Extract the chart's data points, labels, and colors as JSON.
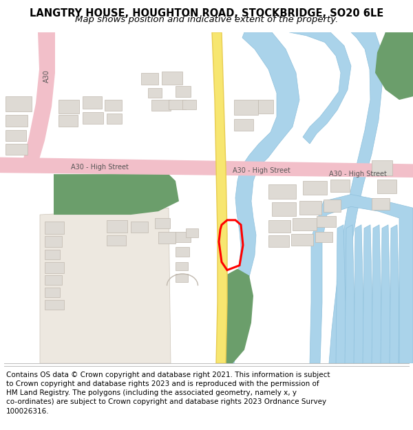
{
  "title_line1": "LANGTRY HOUSE, HOUGHTON ROAD, STOCKBRIDGE, SO20 6LE",
  "title_line2": "Map shows position and indicative extent of the property.",
  "footer_text_lines": [
    "Contains OS data © Crown copyright and database right 2021. This information is subject",
    "to Crown copyright and database rights 2023 and is reproduced with the permission of",
    "HM Land Registry. The polygons (including the associated geometry, namely x, y",
    "co-ordinates) are subject to Crown copyright and database rights 2023 Ordnance Survey",
    "100026316."
  ],
  "bg_color": "#ffffff",
  "map_bg": "#f8f7f5",
  "road_pink_color": "#f2bfc9",
  "road_yellow_color": "#f7e670",
  "road_yellow_border": "#e8cc50",
  "water_color": "#aad3ea",
  "water_stroke": "#8ec0dc",
  "green_dark": "#6b9e6b",
  "green_light": "#8ab87a",
  "building_fill": "#dedad4",
  "building_stroke": "#c0b8ae",
  "beige_fill": "#ede8e0",
  "beige_stroke": "#ccc4b8",
  "road_pink_stroke": "#dda0b0",
  "plot_color": "#ff0000",
  "plot_linewidth": 2.2,
  "road_label_color": "#555555",
  "title_fontsize": 10.5,
  "subtitle_fontsize": 9.5,
  "footer_fontsize": 7.5,
  "label_fontsize": 7.0
}
